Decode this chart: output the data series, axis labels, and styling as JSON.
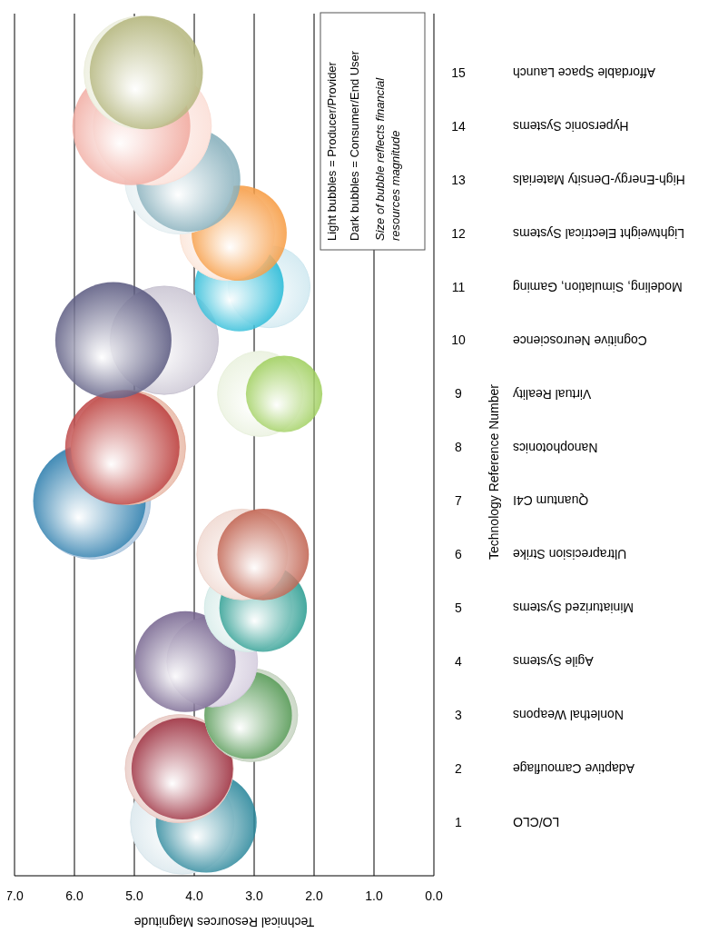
{
  "chart_data": {
    "type": "bubble",
    "orientation": "horizontal",
    "xlabel": "Technical Resources Magnitude",
    "y2label": "Technology Reference Number",
    "categories": [
      "Affordable Space Launch",
      "Hypersonic Systems",
      "High-Energy-Density Materials",
      "Lightweight Electrical Systems",
      "Modeling, Simulation, Gaming",
      "Cognitive Neuroscience",
      "Virtual Reality",
      "Nanophotonics",
      "Quantum C4I",
      "Ultraprecision Strike",
      "Miniaturized Systems",
      "Agile Systems",
      "Nonlethal Weapons",
      "Adaptive Camouflage",
      "LO/CLO"
    ],
    "xlim": [
      7,
      0
    ],
    "xticks": [
      {
        "value": 7,
        "label": "7.0"
      },
      {
        "value": 6,
        "label": "6.0"
      },
      {
        "value": 5,
        "label": "5.0"
      },
      {
        "value": 4,
        "label": "4.0"
      },
      {
        "value": 3,
        "label": "3.0"
      },
      {
        "value": 2,
        "label": "2.0"
      },
      {
        "value": 1,
        "label": "1.0"
      },
      {
        "value": 0,
        "label": "0.0"
      }
    ],
    "y2lim": [
      0,
      16.1
    ],
    "y2ticks": [
      1,
      2,
      3,
      4,
      5,
      6,
      7,
      8,
      9,
      10,
      11,
      12,
      13,
      14,
      15
    ],
    "grid": "x",
    "series": [
      {
        "values": [
          4.9,
          4.7,
          4.25,
          3.45,
          2.75,
          4.5,
          2.9,
          5.1,
          5.7,
          3.2,
          3.1,
          3.7,
          3.05,
          4.25,
          4.2
        ],
        "sizes": [
          0.91,
          1.0,
          0.85,
          0.64,
          0.48,
          0.84,
          0.52,
          0.94,
          0.97,
          0.59,
          0.55,
          0.59,
          0.62,
          0.84,
          0.77
        ],
        "colors": [
          "#eceedd",
          "#fbded6",
          "#e4eef1",
          "#fbe3d5",
          "#cfe8f0",
          "#c9c4d2",
          "#e9f1dd",
          "#e8b8a6",
          "#a9c4dd",
          "#efd7cf",
          "#d5ebe8",
          "#d3cbdd",
          "#c5d3c0",
          "#e8c9c3",
          "#d8e6ec"
        ]
      },
      {
        "values": [
          4.8,
          5.05,
          4.1,
          3.25,
          3.25,
          5.35,
          2.5,
          5.2,
          5.75,
          2.85,
          2.85,
          4.15,
          3.1,
          4.2,
          3.8
        ],
        "sizes": [
          0.92,
          1.0,
          0.78,
          0.65,
          0.57,
          0.97,
          0.42,
          0.94,
          0.91,
          0.6,
          0.55,
          0.73,
          0.55,
          0.74,
          0.73
        ],
        "colors": [
          "#a6a865",
          "#ee9a8e",
          "#6e9fae",
          "#f5891f",
          "#00aed0",
          "#3b3a68",
          "#8dc63f",
          "#b01e1e",
          "#0b6aa0",
          "#b5452f",
          "#00897b",
          "#5a4578",
          "#3a8a3a",
          "#8b0a1e",
          "#006f87"
        ]
      }
    ],
    "annotations": [
      "Light bubbles = Producer/Provider",
      "Dark bubbles = Consumer/End User",
      "Size of bubble reflects financial resources magnitude"
    ]
  }
}
